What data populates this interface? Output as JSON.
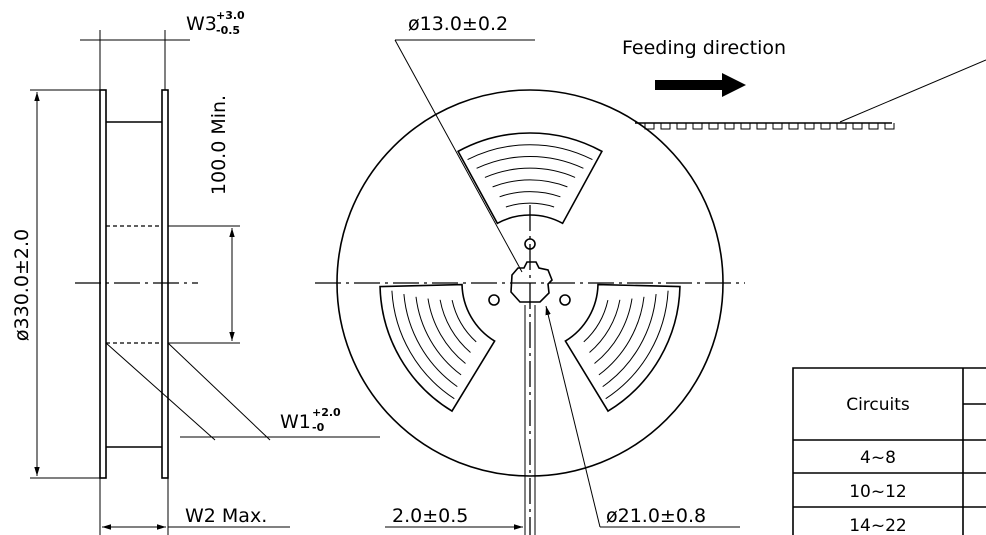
{
  "drawing": {
    "w3": {
      "label": "W3",
      "plus": "+3.0",
      "minus": "-0.5"
    },
    "hub_bore": "ø13.0±0.2",
    "feeding": "Feeding direction",
    "hub_dia": "100.0 Min.",
    "reel_dia": "ø330.0±2.0",
    "w1": {
      "label": "W1",
      "plus": "+2.0",
      "minus": "-0"
    },
    "w2": "W2 Max.",
    "slot": "2.0±0.5",
    "arbor": "ø21.0±0.8"
  },
  "table": {
    "header": "Circuits",
    "rows": [
      "4~8",
      "10~12",
      "14~22"
    ]
  }
}
